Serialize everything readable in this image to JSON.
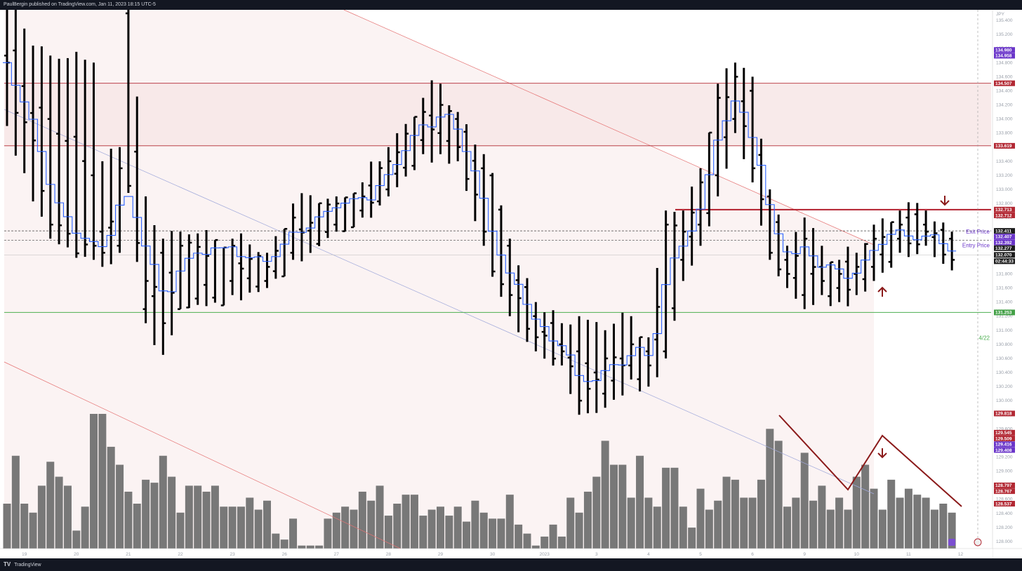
{
  "header": {
    "publisher": "PaulBergin published on TradingView.com, Jan 11, 2023 18:15 UTC-5"
  },
  "footer": {
    "logo_label": "TradingView"
  },
  "chart_data": {
    "type": "ohlc",
    "currency": "JPY",
    "ylim": [
      127.9,
      135.55
    ],
    "ticks": [
      "135.400",
      "135.200",
      "135.000",
      "134.800",
      "134.600",
      "134.400",
      "134.200",
      "134.000",
      "133.800",
      "133.600",
      "133.400",
      "133.200",
      "133.000",
      "132.800",
      "132.600",
      "132.400",
      "132.200",
      "132.000",
      "131.800",
      "131.600",
      "131.400",
      "131.200",
      "131.000",
      "130.800",
      "130.600",
      "130.400",
      "130.200",
      "130.000",
      "129.800",
      "129.600",
      "129.400",
      "129.200",
      "129.000",
      "128.800",
      "128.600",
      "128.400",
      "128.200",
      "128.000"
    ],
    "x_labels": [
      {
        "label": "19",
        "idx": 2
      },
      {
        "label": "20",
        "idx": 8
      },
      {
        "label": "21",
        "idx": 14
      },
      {
        "label": "22",
        "idx": 20
      },
      {
        "label": "23",
        "idx": 26
      },
      {
        "label": "26",
        "idx": 32
      },
      {
        "label": "27",
        "idx": 38
      },
      {
        "label": "28",
        "idx": 44
      },
      {
        "label": "29",
        "idx": 50
      },
      {
        "label": "30",
        "idx": 56
      },
      {
        "label": "2023",
        "idx": 62
      },
      {
        "label": "3",
        "idx": 68
      },
      {
        "label": "4",
        "idx": 74
      },
      {
        "label": "5",
        "idx": 80
      },
      {
        "label": "6",
        "idx": 86
      },
      {
        "label": "9",
        "idx": 92
      },
      {
        "label": "10",
        "idx": 98
      },
      {
        "label": "11",
        "idx": 104
      },
      {
        "label": "12",
        "idx": 110
      }
    ],
    "bars_count": 110,
    "anchors": [
      {
        "i": 0,
        "h": 135.6,
        "l": 133.9,
        "o": 134.9,
        "c": 134.8
      },
      {
        "i": 5,
        "h": 134.9,
        "l": 132.3,
        "o": 134.0,
        "c": 132.5
      },
      {
        "i": 10,
        "h": 134.8,
        "l": 132.0,
        "o": 133.2,
        "c": 132.2
      },
      {
        "i": 11,
        "h": 133.4,
        "l": 131.9,
        "o": 132.4,
        "c": 132.1
      },
      {
        "i": 13,
        "h": 133.6,
        "l": 132.1,
        "o": 132.2,
        "c": 133.3
      },
      {
        "i": 14,
        "h": 135.6,
        "l": 132.95,
        "o": 135.5,
        "c": 133.05
      },
      {
        "i": 16,
        "h": 132.9,
        "l": 131.1,
        "o": 131.3,
        "c": 131.7
      },
      {
        "i": 18,
        "h": 132.3,
        "l": 130.65,
        "o": 132.1,
        "c": 131.1
      },
      {
        "i": 20,
        "h": 132.4,
        "l": 131.3,
        "o": 131.3,
        "c": 132.2
      },
      {
        "i": 26,
        "h": 132.3,
        "l": 131.5,
        "o": 131.7,
        "c": 132.2
      },
      {
        "i": 30,
        "h": 132.1,
        "l": 131.6,
        "o": 131.7,
        "c": 131.9
      },
      {
        "i": 33,
        "h": 132.8,
        "l": 132.0,
        "o": 132.1,
        "c": 132.6
      },
      {
        "i": 38,
        "h": 132.9,
        "l": 132.4,
        "o": 132.5,
        "c": 132.8
      },
      {
        "i": 41,
        "h": 133.1,
        "l": 132.6,
        "o": 132.7,
        "c": 132.9
      },
      {
        "i": 44,
        "h": 133.6,
        "l": 132.9,
        "o": 133.0,
        "c": 133.4
      },
      {
        "i": 48,
        "h": 134.3,
        "l": 133.5,
        "o": 133.7,
        "c": 134.1
      },
      {
        "i": 50,
        "h": 134.5,
        "l": 133.5,
        "o": 133.8,
        "c": 134.2
      },
      {
        "i": 52,
        "h": 134.1,
        "l": 133.4,
        "o": 134.0,
        "c": 133.6
      },
      {
        "i": 55,
        "h": 133.5,
        "l": 132.2,
        "o": 133.3,
        "c": 132.4
      },
      {
        "i": 58,
        "h": 132.3,
        "l": 131.2,
        "o": 132.2,
        "c": 131.5
      },
      {
        "i": 61,
        "h": 131.4,
        "l": 130.7,
        "o": 131.2,
        "c": 130.9
      },
      {
        "i": 64,
        "h": 131.1,
        "l": 130.5,
        "o": 130.8,
        "c": 130.7
      },
      {
        "i": 66,
        "h": 131.2,
        "l": 129.8,
        "o": 130.7,
        "c": 130.0
      },
      {
        "i": 69,
        "h": 131.0,
        "l": 129.9,
        "o": 130.1,
        "c": 130.6
      },
      {
        "i": 72,
        "h": 131.2,
        "l": 130.3,
        "o": 130.5,
        "c": 130.8
      },
      {
        "i": 74,
        "h": 130.9,
        "l": 130.2,
        "o": 130.7,
        "c": 130.5
      },
      {
        "i": 76,
        "h": 132.7,
        "l": 130.6,
        "o": 130.7,
        "c": 132.5
      },
      {
        "i": 78,
        "h": 132.7,
        "l": 131.7,
        "o": 132.0,
        "c": 132.4
      },
      {
        "i": 80,
        "h": 133.3,
        "l": 132.2,
        "o": 132.5,
        "c": 133.1
      },
      {
        "i": 82,
        "h": 134.5,
        "l": 132.9,
        "o": 133.2,
        "c": 134.3
      },
      {
        "i": 84,
        "h": 134.8,
        "l": 133.8,
        "o": 134.0,
        "c": 134.6
      },
      {
        "i": 86,
        "h": 134.6,
        "l": 133.1,
        "o": 134.4,
        "c": 133.3
      },
      {
        "i": 88,
        "h": 133.0,
        "l": 132.0,
        "o": 132.9,
        "c": 132.1
      },
      {
        "i": 90,
        "h": 132.2,
        "l": 131.6,
        "o": 132.0,
        "c": 131.8
      },
      {
        "i": 92,
        "h": 132.6,
        "l": 131.3,
        "o": 131.5,
        "c": 132.3
      },
      {
        "i": 94,
        "h": 132.2,
        "l": 131.5,
        "o": 131.9,
        "c": 131.7
      },
      {
        "i": 96,
        "h": 132.0,
        "l": 131.4,
        "o": 131.6,
        "c": 131.8
      },
      {
        "i": 98,
        "h": 132.1,
        "l": 131.5,
        "o": 131.8,
        "c": 131.9
      },
      {
        "i": 100,
        "h": 132.5,
        "l": 131.7,
        "o": 131.9,
        "c": 132.3
      },
      {
        "i": 103,
        "h": 132.7,
        "l": 132.1,
        "o": 132.3,
        "c": 132.5
      },
      {
        "i": 106,
        "h": 132.7,
        "l": 132.2,
        "o": 132.5,
        "c": 132.4
      },
      {
        "i": 109,
        "h": 132.4,
        "l": 131.85,
        "o": 132.3,
        "c": 132.0
      }
    ],
    "volume_profile": [
      30,
      62,
      30,
      24,
      42,
      58,
      48,
      42,
      12,
      28,
      90,
      90,
      68,
      56,
      38,
      30,
      46,
      44,
      62,
      48,
      24,
      42,
      42,
      38,
      42,
      28,
      28,
      28,
      34,
      26,
      32,
      10,
      6,
      20,
      2,
      2,
      2,
      20,
      24,
      28,
      26,
      38,
      32,
      42,
      22,
      30,
      36,
      36,
      22,
      26,
      28,
      22,
      28,
      18,
      32,
      24,
      20,
      20,
      36,
      16,
      10,
      2,
      8,
      16,
      8,
      34,
      24,
      38,
      48,
      72,
      56,
      56,
      34,
      62,
      34,
      28,
      54,
      54,
      28,
      14,
      40,
      26,
      32,
      48,
      46,
      34,
      34,
      46,
      80,
      72,
      28,
      34,
      64,
      32,
      42,
      26,
      34,
      26,
      48,
      56,
      40,
      26,
      46,
      34,
      40,
      36,
      34,
      26,
      30,
      24
    ],
    "right_tags": [
      {
        "text": "JPY",
        "kind": "currency",
        "price": 135.55
      },
      {
        "text": "134.980",
        "kind": "purple",
        "price": 134.98
      },
      {
        "text": "134.958",
        "kind": "purple",
        "price": 134.958
      },
      {
        "text": "134.507",
        "kind": "red",
        "price": 134.507
      },
      {
        "text": "133.619",
        "kind": "red",
        "price": 133.619
      },
      {
        "text": "132.713",
        "kind": "red",
        "price": 132.713
      },
      {
        "text": "132.712",
        "kind": "red",
        "price": 132.712
      },
      {
        "text": "132.411",
        "kind": "black",
        "price": 132.411
      },
      {
        "text": "132.407",
        "kind": "purple",
        "price": 132.407
      },
      {
        "text": "132.392",
        "kind": "purple",
        "price": 132.392
      },
      {
        "text": "132.277",
        "kind": "black",
        "price": 132.277
      },
      {
        "text": "132.070",
        "kind": "black",
        "price": 132.07
      },
      {
        "text": "02:44:33",
        "kind": "black",
        "price": 131.98
      },
      {
        "text": "131.253",
        "kind": "green",
        "price": 131.253
      },
      {
        "text": "129.818",
        "kind": "red",
        "price": 129.818
      },
      {
        "text": "129.545",
        "kind": "red",
        "price": 129.545
      },
      {
        "text": "129.509",
        "kind": "red",
        "price": 129.509
      },
      {
        "text": "129.416",
        "kind": "purple",
        "price": 129.416
      },
      {
        "text": "129.408",
        "kind": "purple",
        "price": 129.408
      },
      {
        "text": "128.797",
        "kind": "red",
        "price": 128.797
      },
      {
        "text": "128.767",
        "kind": "red",
        "price": 128.767
      },
      {
        "text": "128.537",
        "kind": "red",
        "price": 128.537
      }
    ],
    "annotations": {
      "exit_price": "Exit Price",
      "entry_price": "Entry Price",
      "date_note": "4/22"
    },
    "levels": {
      "zone_top": 134.507,
      "zone_bottom": 133.619,
      "resistance": 132.712,
      "exit": 132.411,
      "entry": 132.277,
      "last": 132.07,
      "support": 131.253
    },
    "colors": {
      "bars": "#000000",
      "stepline": "#2962ff",
      "zone": "#f7e6e6",
      "zone_line": "#b22833",
      "resistance": "#b21f2d",
      "support": "#4caf50",
      "volume": "#787878",
      "arrow": "#8b1a1a",
      "tag_red": "#b22833",
      "tag_purple": "#6a35c9",
      "tag_green": "#43a047",
      "tag_black": "#1c1c1c"
    }
  }
}
